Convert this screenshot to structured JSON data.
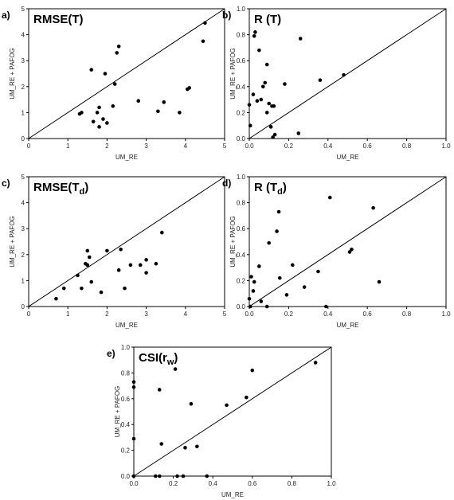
{
  "chart_data": [
    {
      "type": "scatter",
      "panel_label": "a)",
      "title": "RMSE(T)",
      "x_label": "UM_RE",
      "y_label": "UM_RE + PAFOG",
      "color": "#000000",
      "diagonal": true,
      "xlim": [
        0,
        5
      ],
      "ylim": [
        0,
        5
      ],
      "xticks": [
        0,
        1,
        2,
        3,
        4,
        5
      ],
      "yticks": [
        0,
        1,
        2,
        3,
        4,
        5
      ],
      "x": [
        1.3,
        1.35,
        1.6,
        1.65,
        1.75,
        1.8,
        1.8,
        1.9,
        1.95,
        2.0,
        2.15,
        2.2,
        2.25,
        2.3,
        2.8,
        3.3,
        3.45,
        3.85,
        4.05,
        4.1,
        4.45,
        4.5
      ],
      "y": [
        0.95,
        1.0,
        2.65,
        0.65,
        1.0,
        1.2,
        0.45,
        0.75,
        2.5,
        0.6,
        1.25,
        2.1,
        3.3,
        3.55,
        1.45,
        1.05,
        1.4,
        1.0,
        1.9,
        1.95,
        3.75,
        4.45
      ]
    },
    {
      "type": "scatter",
      "panel_label": "b)",
      "title": "R (T)",
      "x_label": "UM_RE",
      "y_label": "UM_RE + PAFOG",
      "color": "#000000",
      "diagonal": true,
      "xlim": [
        0,
        1
      ],
      "ylim": [
        0,
        1
      ],
      "xticks": [
        {
          "value": 0,
          "label": "0.0"
        },
        0.2,
        0.4,
        0.6,
        0.8,
        {
          "value": 1,
          "label": "1.0"
        }
      ],
      "yticks": [
        {
          "value": 0,
          "label": "0.0"
        },
        0.2,
        0.4,
        0.6,
        0.8,
        {
          "value": 1,
          "label": "1.0"
        }
      ],
      "x": [
        0.0,
        0.005,
        0.02,
        0.025,
        0.03,
        0.04,
        0.05,
        0.06,
        0.07,
        0.08,
        0.09,
        0.09,
        0.1,
        0.11,
        0.115,
        0.125,
        0.12,
        0.13,
        0.18,
        0.25,
        0.26,
        0.36,
        0.48
      ],
      "y": [
        0.26,
        0.1,
        0.34,
        0.79,
        0.82,
        0.29,
        0.68,
        0.3,
        0.4,
        0.43,
        0.57,
        0.2,
        0.27,
        0.09,
        0.25,
        0.25,
        0.01,
        0.03,
        0.42,
        0.04,
        0.77,
        0.45,
        0.49
      ]
    },
    {
      "type": "scatter",
      "panel_label": "c)",
      "title": "RMSE(T",
      "title_subscript": "d",
      "title_suffix": ")",
      "x_label": "UM_RE",
      "y_label": "UM_RE + PAFOG",
      "color": "#000000",
      "diagonal": true,
      "xlim": [
        0,
        5
      ],
      "ylim": [
        0,
        5
      ],
      "xticks": [
        0,
        1,
        2,
        3,
        4,
        5
      ],
      "yticks": [
        0,
        1,
        2,
        3,
        4,
        5
      ],
      "x": [
        0.7,
        0.9,
        1.25,
        1.35,
        1.45,
        1.5,
        1.55,
        1.6,
        1.5,
        1.85,
        2.0,
        2.3,
        2.35,
        2.45,
        2.6,
        2.85,
        3.0,
        3.0,
        3.25,
        3.4
      ],
      "y": [
        0.3,
        0.7,
        1.2,
        0.7,
        1.65,
        2.15,
        1.9,
        0.95,
        1.6,
        0.55,
        2.15,
        1.4,
        2.2,
        0.7,
        1.6,
        1.6,
        1.8,
        1.3,
        1.65,
        2.85
      ]
    },
    {
      "type": "scatter",
      "panel_label": "d)",
      "title": "R (T",
      "title_subscript": "d",
      "title_suffix": ")",
      "x_label": "UM_RE",
      "y_label": "UM_RE + PAFOG",
      "color": "#000000",
      "diagonal": true,
      "xlim": [
        0,
        1
      ],
      "ylim": [
        0,
        1
      ],
      "xticks": [
        {
          "value": 0,
          "label": "0.0"
        },
        0.2,
        0.4,
        0.6,
        0.8,
        {
          "value": 1,
          "label": "1.0"
        }
      ],
      "yticks": [
        {
          "value": 0,
          "label": "0.0"
        },
        0.2,
        0.4,
        0.6,
        0.8,
        {
          "value": 1,
          "label": "1.0"
        }
      ],
      "x": [
        0.0,
        0.005,
        0.01,
        0.02,
        0.025,
        0.05,
        0.06,
        0.09,
        0.1,
        0.14,
        0.15,
        0.155,
        0.19,
        0.22,
        0.28,
        0.35,
        0.39,
        0.41,
        0.51,
        0.52,
        0.63,
        0.66
      ],
      "y": [
        0.06,
        0.0,
        0.23,
        0.12,
        0.19,
        0.31,
        0.04,
        0.0,
        0.49,
        0.58,
        0.73,
        0.22,
        0.09,
        0.32,
        0.15,
        0.27,
        0.0,
        0.84,
        0.42,
        0.44,
        0.76,
        0.19
      ]
    },
    {
      "type": "scatter",
      "panel_label": "e)",
      "title": "CSI(r",
      "title_subscript": "w",
      "title_suffix": ")",
      "x_label": "UM_RE",
      "y_label": "UM_RE + PAFOG",
      "color": "#000000",
      "diagonal": true,
      "xlim": [
        0,
        1
      ],
      "ylim": [
        0,
        1
      ],
      "xticks": [
        {
          "value": 0,
          "label": "0.0"
        },
        0.2,
        0.4,
        0.6,
        0.8,
        {
          "value": 1,
          "label": "1.0"
        }
      ],
      "yticks": [
        {
          "value": 0,
          "label": "0.0"
        },
        0.2,
        0.4,
        0.6,
        0.8,
        {
          "value": 1,
          "label": "1.0"
        }
      ],
      "x": [
        0.0,
        0.0,
        0.0,
        0.0,
        0.11,
        0.13,
        0.13,
        0.14,
        0.21,
        0.22,
        0.25,
        0.26,
        0.29,
        0.32,
        0.37,
        0.47,
        0.57,
        0.6,
        0.92
      ],
      "y": [
        0.0,
        0.29,
        0.69,
        0.73,
        0.0,
        0.0,
        0.67,
        0.25,
        0.83,
        0.0,
        0.0,
        0.22,
        0.56,
        0.23,
        0.0,
        0.55,
        0.61,
        0.82,
        0.88
      ]
    }
  ]
}
